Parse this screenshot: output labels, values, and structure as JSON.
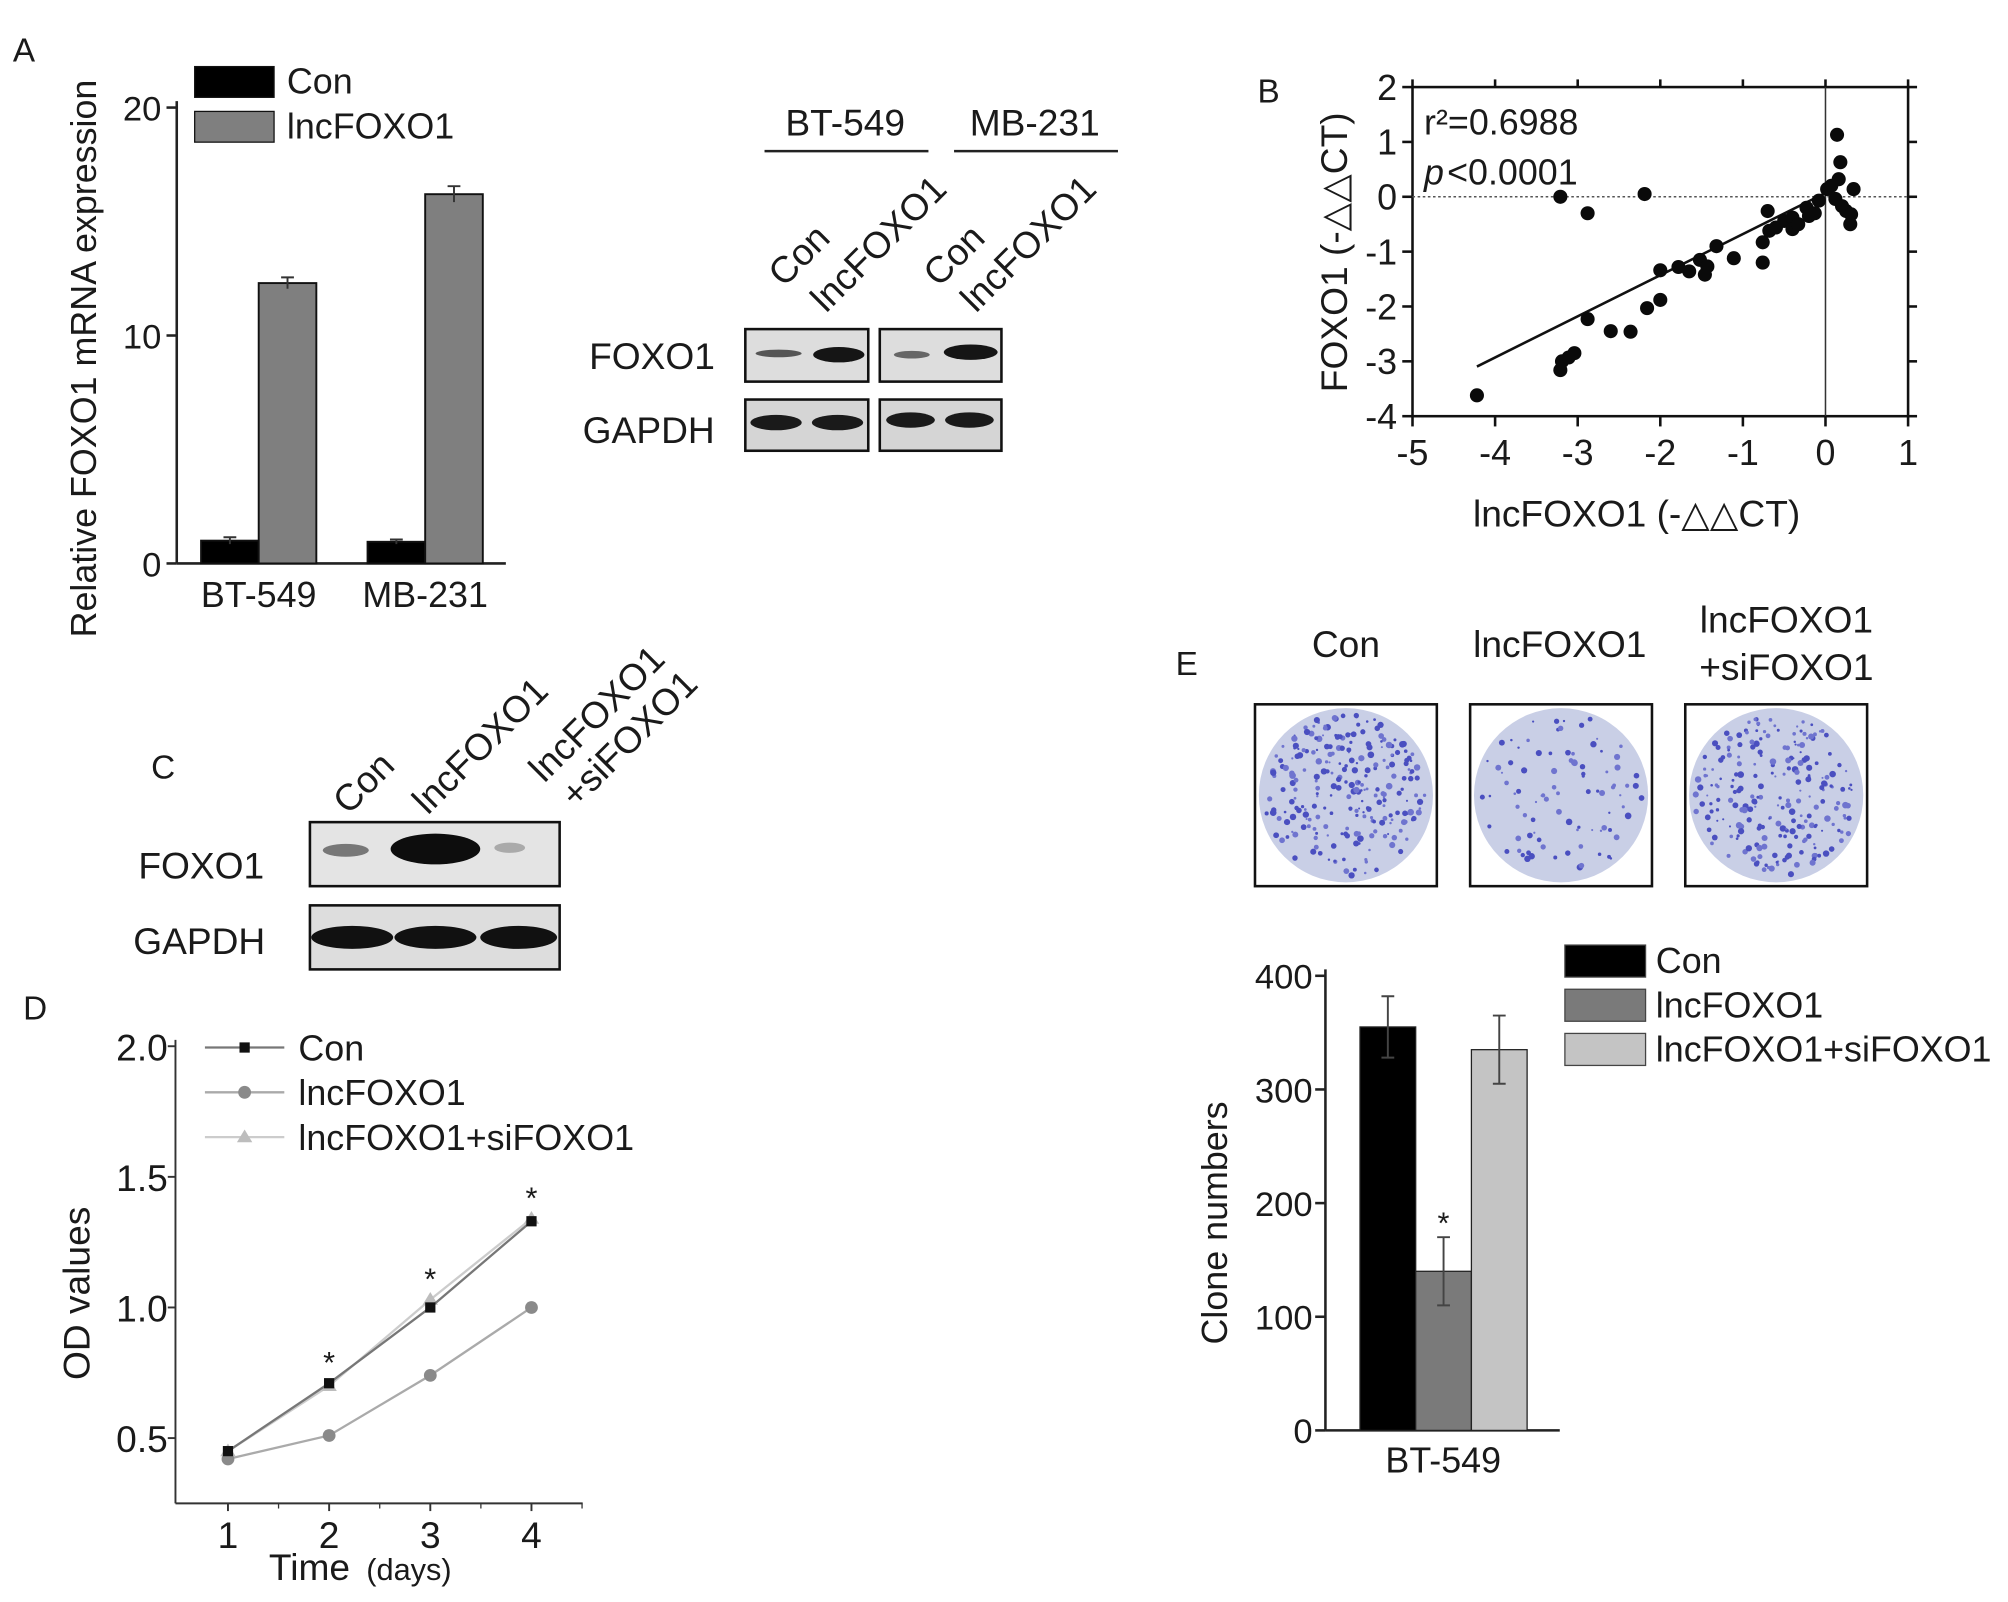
{
  "panels": {
    "A": "A",
    "B": "B",
    "C": "C",
    "D": "D",
    "E": "E"
  },
  "chart_data": [
    {
      "id": "A",
      "type": "bar",
      "categories": [
        "BT-549",
        "MB-231"
      ],
      "series": [
        {
          "name": "Con",
          "color": "#000000",
          "values": [
            1.0,
            0.95
          ],
          "errors": [
            0.15,
            0.1
          ]
        },
        {
          "name": "lncFOXO1",
          "color": "#7f7f7f",
          "values": [
            12.3,
            16.2
          ],
          "errors": [
            0.25,
            0.35
          ]
        }
      ],
      "ylabel": "Relative FOXO1 mRNA expression",
      "ylim": [
        0,
        20
      ],
      "yticks": [
        0,
        10,
        20
      ],
      "legend": "top-left"
    },
    {
      "id": "B",
      "type": "scatter",
      "xlabel": "lncFOXO1 (-△△CT)",
      "ylabel": "FOXO1 (-△△CT)",
      "xlim": [
        -5,
        1
      ],
      "ylim": [
        -4,
        2
      ],
      "xticks": [
        -5,
        -4,
        -3,
        -2,
        -1,
        0,
        1
      ],
      "yticks": [
        -4,
        -3,
        -2,
        -1,
        0,
        1,
        2
      ],
      "annotation_r2": "r²=0.6988",
      "annotation_p_symbol": "p",
      "annotation_p": "<0.0001",
      "regression": {
        "slope": 0.75,
        "intercept": 0.07,
        "x_range": [
          -4.22,
          0.02
        ]
      },
      "points": [
        [
          -4.22,
          -3.62
        ],
        [
          -3.21,
          0
        ],
        [
          -2.19,
          0.05
        ],
        [
          -2.88,
          -0.3
        ],
        [
          -3.21,
          -3.16
        ],
        [
          -3.19,
          -3.0
        ],
        [
          -3.11,
          -2.93
        ],
        [
          -3.04,
          -2.85
        ],
        [
          -2.88,
          -2.23
        ],
        [
          -2.6,
          -2.45
        ],
        [
          -2.36,
          -2.46
        ],
        [
          -2.16,
          -2.03
        ],
        [
          -2.0,
          -1.88
        ],
        [
          -2.0,
          -1.34
        ],
        [
          -1.78,
          -1.28
        ],
        [
          -1.65,
          -1.36
        ],
        [
          -1.52,
          -1.15
        ],
        [
          -1.43,
          -1.27
        ],
        [
          -1.46,
          -1.42
        ],
        [
          -1.32,
          -0.9
        ],
        [
          -1.11,
          -1.12
        ],
        [
          -0.76,
          -0.83
        ],
        [
          -0.76,
          -1.2
        ],
        [
          -0.7,
          -0.26
        ],
        [
          -0.68,
          -0.62
        ],
        [
          -0.6,
          -0.56
        ],
        [
          -0.5,
          -0.44
        ],
        [
          -0.4,
          -0.38
        ],
        [
          -0.4,
          -0.59
        ],
        [
          -0.33,
          -0.5
        ],
        [
          -0.23,
          -0.2
        ],
        [
          -0.2,
          -0.35
        ],
        [
          -0.13,
          -0.3
        ],
        [
          -0.08,
          -0.07
        ],
        [
          0.02,
          0.14
        ],
        [
          0.07,
          0.2
        ],
        [
          0.14,
          1.13
        ],
        [
          0.18,
          0.63
        ],
        [
          0.16,
          0.32
        ],
        [
          0.12,
          -0.04
        ],
        [
          0.2,
          -0.17
        ],
        [
          0.25,
          -0.26
        ],
        [
          0.31,
          -0.32
        ],
        [
          0.3,
          -0.5
        ],
        [
          0.34,
          0.14
        ]
      ]
    },
    {
      "id": "D",
      "type": "line",
      "x": [
        1,
        2,
        3,
        4
      ],
      "series": [
        {
          "name": "Con",
          "marker": "square",
          "color": "#111111",
          "line": "#777777",
          "values": [
            0.45,
            0.71,
            1.0,
            1.33
          ]
        },
        {
          "name": "lncFOXO1",
          "marker": "circle",
          "color": "#8a8a8a",
          "line": "#aaaaaa",
          "values": [
            0.42,
            0.51,
            0.74,
            1.0
          ]
        },
        {
          "name": "lncFOXO1+siFOXO1",
          "marker": "triangle",
          "color": "#bdbdbd",
          "line": "#cccccc",
          "values": [
            0.45,
            0.7,
            1.03,
            1.34
          ]
        }
      ],
      "significance": [
        {
          "x": 2,
          "label": "*"
        },
        {
          "x": 3,
          "label": "*"
        },
        {
          "x": 4,
          "label": "*"
        }
      ],
      "xlabel": "Time",
      "xlabel_unit": "(days)",
      "ylabel": "OD values",
      "xlim": [
        0.5,
        4.5
      ],
      "ylim": [
        0.25,
        2.0
      ],
      "yticks": [
        0.5,
        1.0,
        1.5,
        2.0
      ],
      "ytick_labels": [
        "0.5",
        "1.0",
        "1.5",
        "2.0"
      ],
      "legend": "top-left"
    },
    {
      "id": "E",
      "type": "bar",
      "categories": [
        "BT-549"
      ],
      "series": [
        {
          "name": "Con",
          "color": "#000000",
          "values": [
            355
          ],
          "errors": [
            27
          ]
        },
        {
          "name": "lncFOXO1",
          "color": "#7a7a7a",
          "values": [
            140
          ],
          "errors": [
            30
          ]
        },
        {
          "name": "lncFOXO1+siFOXO1",
          "color": "#c4c4c4",
          "values": [
            335
          ],
          "errors": [
            30
          ]
        }
      ],
      "significance": [
        {
          "series": 1,
          "label": "*"
        }
      ],
      "ylabel": "Clone numbers",
      "ylim": [
        0,
        400
      ],
      "yticks": [
        0,
        100,
        200,
        300,
        400
      ],
      "legend": "top-right"
    }
  ],
  "blotA": {
    "cell_lines": [
      "BT-549",
      "MB-231"
    ],
    "lanes": [
      "Con",
      "lncFOXO1"
    ],
    "rows": [
      "FOXO1",
      "GAPDH"
    ]
  },
  "blotC": {
    "lanes": [
      "Con",
      "lncFOXO1",
      "lncFOXO1",
      "+siFOXO1"
    ],
    "rows": [
      "FOXO1",
      "GAPDH"
    ]
  },
  "colonies": {
    "headers": [
      "Con",
      "lncFOXO1",
      "lncFOXO1",
      "+siFOXO1"
    ]
  }
}
